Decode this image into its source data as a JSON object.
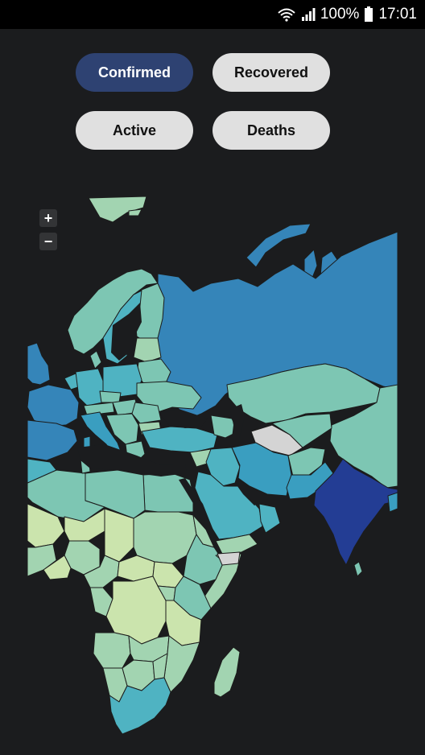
{
  "status_bar": {
    "battery": "100%",
    "time": "17:01",
    "icons": [
      "wifi-icon",
      "signal-icon",
      "battery-icon"
    ]
  },
  "metric_toggle": {
    "selected": "Confirmed",
    "buttons": [
      "Confirmed",
      "Recovered",
      "Active",
      "Deaths"
    ]
  },
  "map": {
    "zoom_in": "+",
    "zoom_out": "−",
    "colors": {
      "highest": "#233d94",
      "high": "#3585b9",
      "mid_high": "#3a9ec0",
      "mid": "#4fb3c2",
      "mid_low": "#7dc6b3",
      "low": "#a2d4b1",
      "lowest": "#cbe4ad",
      "no_data": "#d4d4d4",
      "water": "#1b1c1e",
      "border": "#1c1c1c"
    }
  }
}
